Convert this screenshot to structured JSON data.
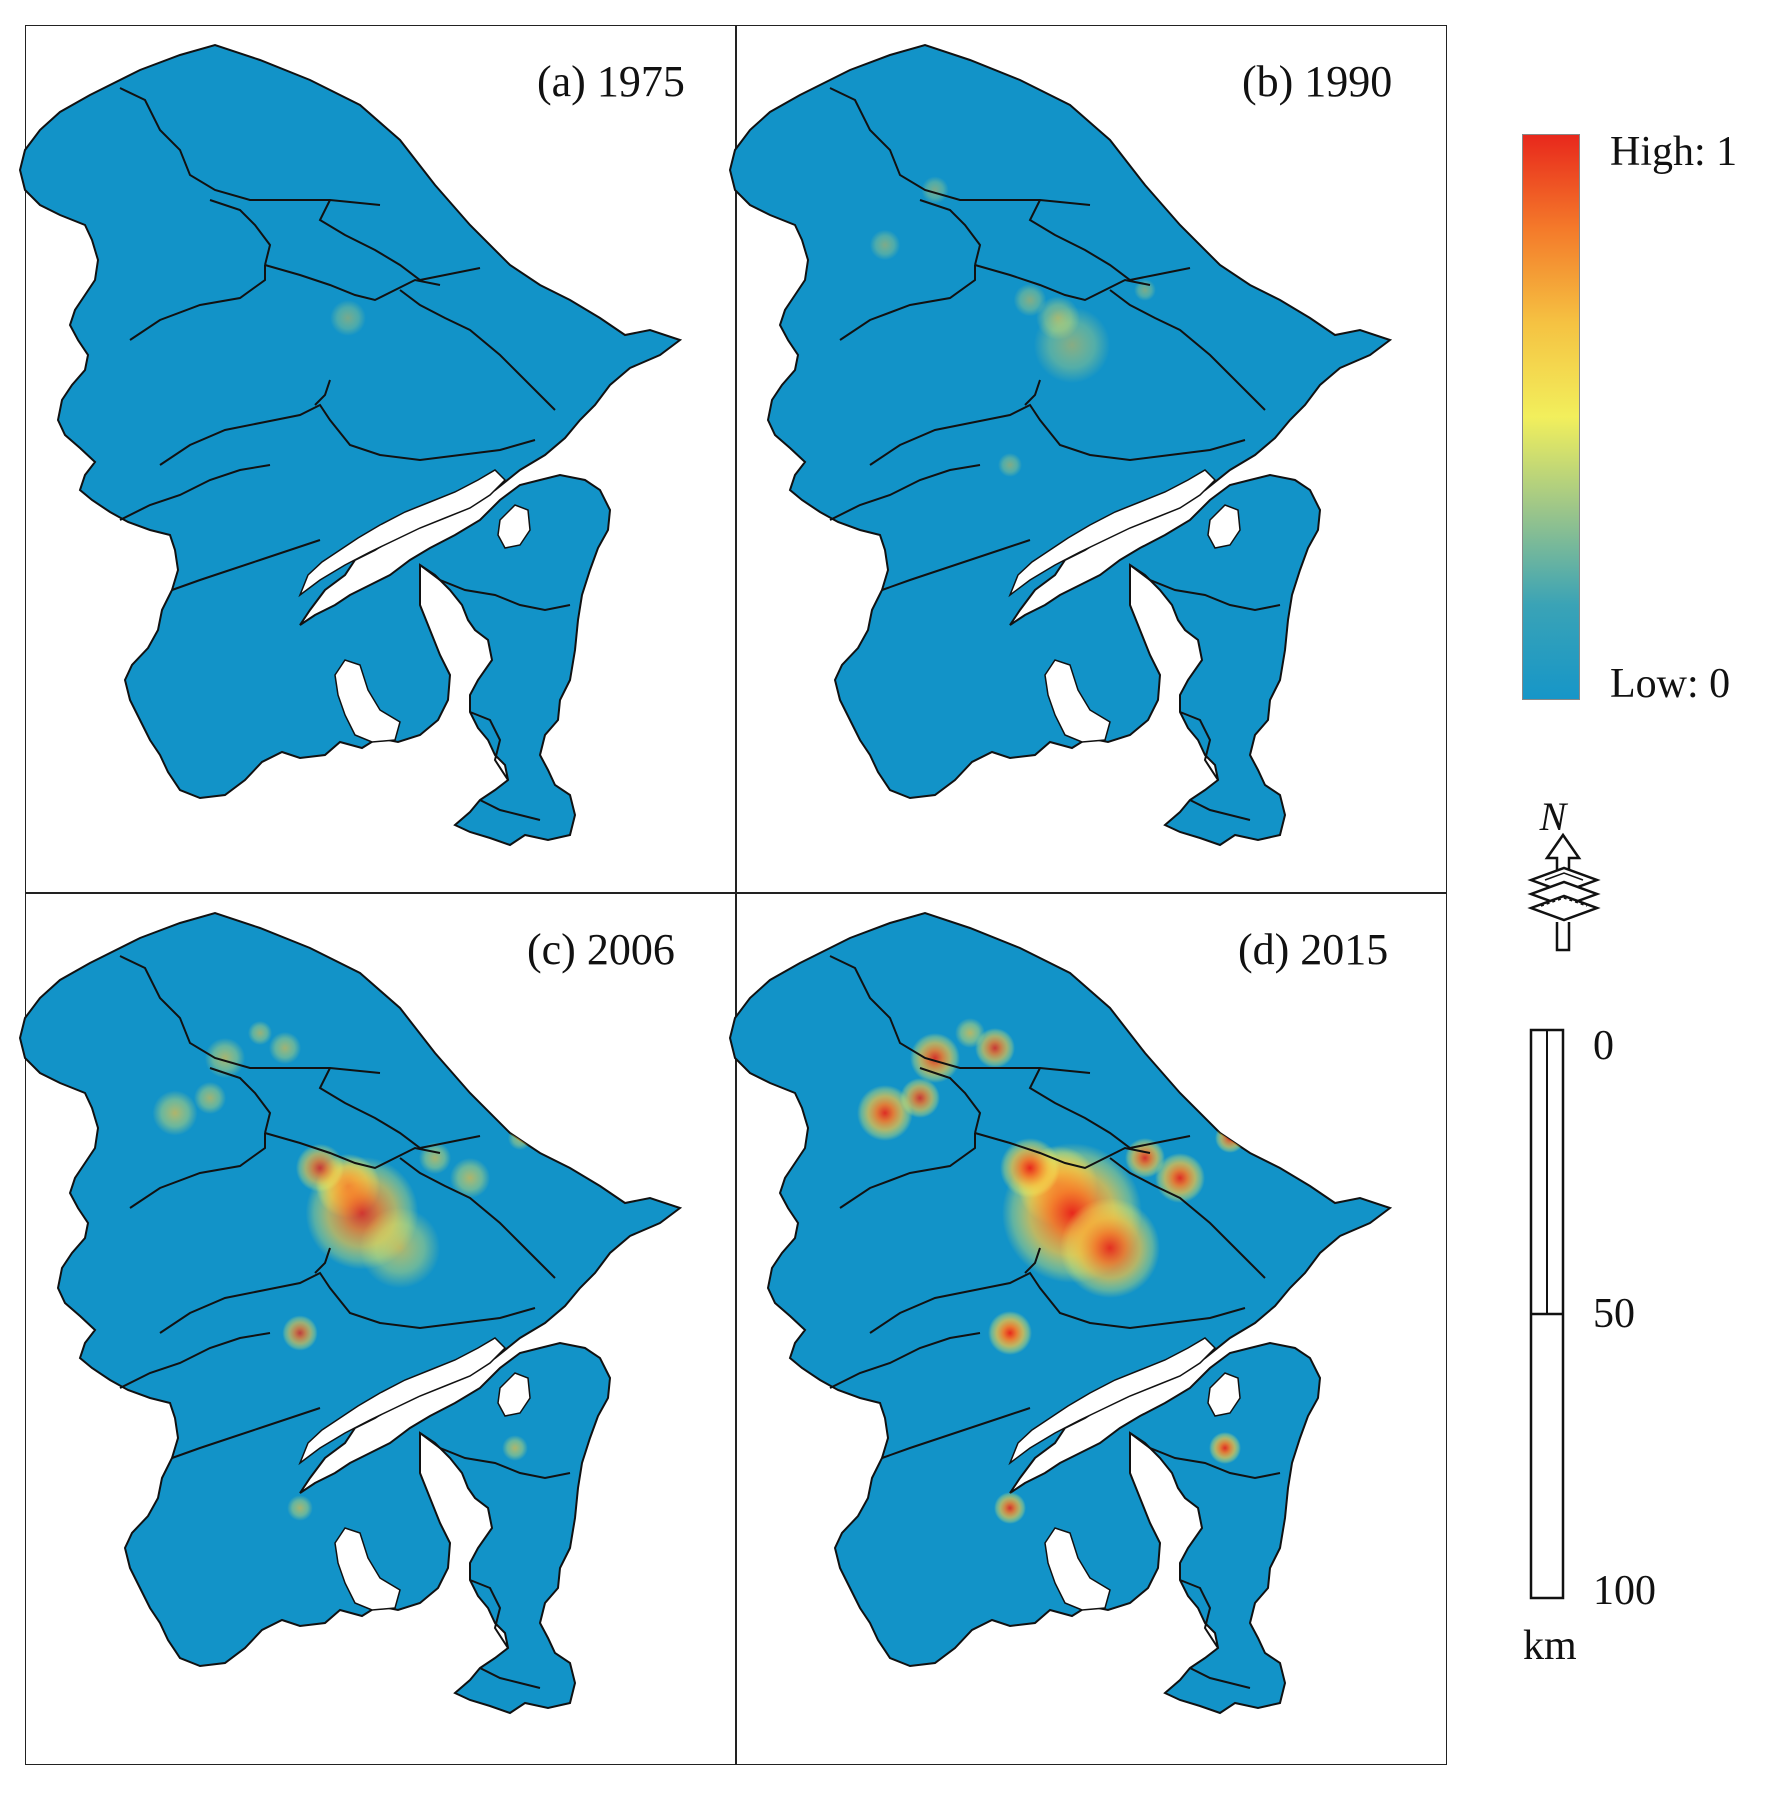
{
  "figure": {
    "panels": [
      {
        "id": "a",
        "title": "(a) 1975",
        "year": 1975,
        "intensity": 0.15
      },
      {
        "id": "b",
        "title": "(b) 1990",
        "year": 1990,
        "intensity": 0.3
      },
      {
        "id": "c",
        "title": "(c) 2006",
        "year": 2006,
        "intensity": 0.7
      },
      {
        "id": "d",
        "title": "(d) 2015",
        "year": 2015,
        "intensity": 1.0
      }
    ]
  },
  "legend": {
    "high_label": "High: 1",
    "low_label": "Low: 0",
    "colors": [
      "#e8281c",
      "#f47a2a",
      "#f5c242",
      "#f2ef5c",
      "#9bc58a",
      "#3aa3b6",
      "#1696c8"
    ]
  },
  "map_style": {
    "land_color": "#1293c8",
    "water_color": "#ffffff",
    "boundary_color": "#111111"
  },
  "north_arrow": {
    "label": "N"
  },
  "scale_bar": {
    "ticks": [
      "0",
      "50",
      "100"
    ],
    "unit": "km"
  }
}
